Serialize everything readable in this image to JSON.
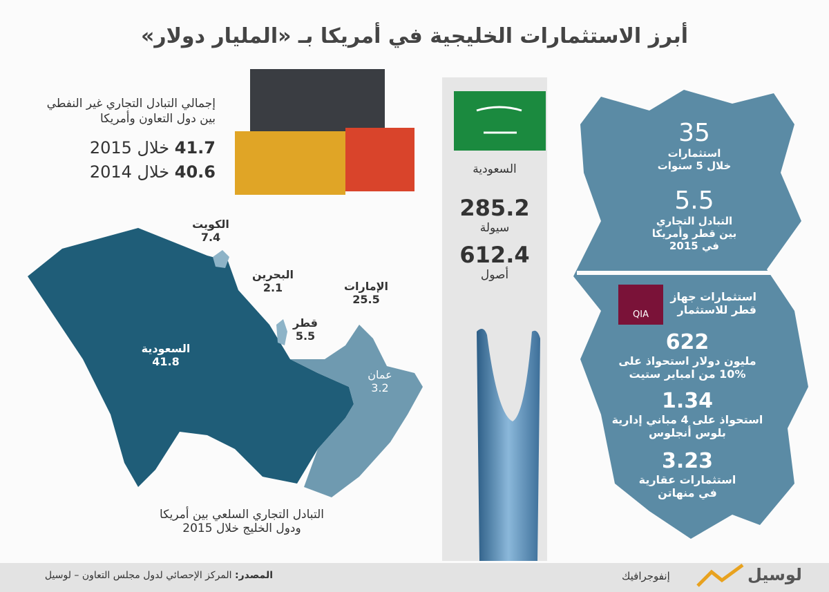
{
  "header": {
    "title": "أبرز الاستثمارات الخليجية  في أمريكا بـ «المليار دولار»"
  },
  "trade": {
    "label": [
      "إجمالي التبادل التجاري غير النفطي",
      "بين دول التعاون وأمريكا"
    ],
    "rows": [
      {
        "value": "41.7",
        "period": "خلال 2015"
      },
      {
        "value": "40.6",
        "period": "خلال 2014"
      }
    ]
  },
  "map": {
    "regions": [
      {
        "name": "الكويت",
        "value": "7.4"
      },
      {
        "name": "البحرين",
        "value": "2.1"
      },
      {
        "name": "الإمارات",
        "value": "25.5"
      },
      {
        "name": "قطر",
        "value": "5.5"
      },
      {
        "name": "السعودية",
        "value": "41.8"
      },
      {
        "name": "عمان",
        "value": "3.2"
      }
    ],
    "caption": [
      "التبادل التجاري السلعي بين أمريكا",
      "ودول الخليج خلال 2015"
    ]
  },
  "saudi": {
    "country": "السعودية",
    "items": [
      {
        "value": "285.2",
        "label": "سيولة"
      },
      {
        "value": "612.4",
        "label": "أصول"
      }
    ]
  },
  "qatar": {
    "top": [
      {
        "value": "35",
        "label": [
          "استثمارات",
          "خلال 5 سنوات"
        ]
      },
      {
        "value": "5.5",
        "label": [
          "التبادل التجاري",
          "بين قطر وأمريكا",
          "في 2015"
        ]
      }
    ],
    "qia": {
      "logo": "QIA",
      "title": [
        "استثمارات جهاز",
        "قطر  للاستثمار"
      ]
    },
    "items": [
      {
        "value": "622",
        "label": [
          "مليون دولار  استحواذ على",
          "10% من امباير ستيت"
        ]
      },
      {
        "value": "1.34",
        "label": [
          "استحواذ على 4 مباني إدارية",
          "بلوس أنجلوس"
        ]
      },
      {
        "value": "3.23",
        "label": [
          "استثمارات عقارية",
          "في منهاتن"
        ]
      }
    ]
  },
  "footer": {
    "source_label": "المصدر:",
    "source": "المركز الإحصائي لدول مجلس التعاون – لوسيل",
    "section": "إنفوجرافيك",
    "brand": "لوسيل"
  }
}
